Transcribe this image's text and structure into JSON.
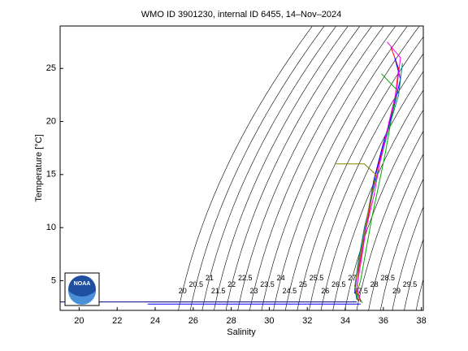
{
  "chart_data": {
    "type": "ts-diagram",
    "title": "WMO ID 3901230, internal ID 6455, 14–Nov–2024",
    "x_label": "Salinity",
    "y_label": "Temperature [°C]",
    "xlim": [
      19,
      38.1
    ],
    "ylim": [
      2.2,
      29
    ],
    "xticks": [
      20,
      22,
      24,
      26,
      28,
      30,
      32,
      34,
      36,
      38
    ],
    "yticks": [
      5,
      10,
      15,
      20,
      25
    ],
    "isopycnal_levels": [
      20,
      20.5,
      21,
      21.5,
      22,
      22.5,
      23,
      23.5,
      24,
      24.5,
      25,
      25.5,
      26,
      26.5,
      27,
      27.5,
      28,
      28.5,
      29,
      29.5,
      30
    ],
    "isopycnal_color": "#000000",
    "logo_text": "NOAA",
    "series": [
      {
        "color": "#ff0000",
        "x": [
          36.4,
          36.8,
          36.6,
          36.2,
          35.6,
          35.3,
          35.0,
          34.7,
          34.6,
          34.8
        ],
        "values": [
          27.0,
          25.0,
          22.0,
          19.0,
          15.0,
          12.0,
          9.0,
          6.0,
          4.0,
          3.0
        ]
      },
      {
        "color": "#0000ff",
        "x": [
          36.6,
          36.9,
          36.5,
          36.0,
          35.5,
          35.2,
          34.9,
          34.6,
          34.5,
          34.7
        ],
        "values": [
          26.0,
          24.0,
          21.0,
          18.0,
          14.5,
          11.5,
          8.5,
          5.5,
          4.0,
          3.0
        ]
      },
      {
        "color": "#00aa00",
        "x": [
          35.9,
          36.7,
          36.4,
          36.1,
          35.7,
          35.4,
          35.1,
          34.8,
          34.6,
          34.9
        ],
        "values": [
          24.5,
          23.0,
          20.0,
          17.0,
          13.5,
          11.0,
          8.0,
          5.0,
          3.8,
          2.9
        ]
      },
      {
        "color": "#008080",
        "x": [
          37.0,
          36.8,
          36.3,
          35.8,
          35.4,
          35.0,
          34.7,
          34.5,
          34.6
        ],
        "values": [
          25.5,
          22.5,
          19.5,
          16.0,
          13.0,
          10.0,
          7.0,
          4.5,
          3.2
        ]
      },
      {
        "color": "#ff00ff",
        "x": [
          36.2,
          36.9,
          36.7,
          36.3,
          35.8,
          35.5,
          35.1,
          34.8,
          34.6,
          34.8
        ],
        "values": [
          27.5,
          26.0,
          23.0,
          20.0,
          16.0,
          13.0,
          10.0,
          6.5,
          4.5,
          3.1
        ]
      },
      {
        "color": "#808000",
        "x": [
          33.5,
          35.0,
          35.6,
          35.3,
          35.0,
          34.7,
          34.5,
          34.7
        ],
        "values": [
          16.0,
          16.0,
          15.0,
          12.5,
          9.5,
          6.5,
          4.5,
          3.0
        ]
      },
      {
        "color": "#000080",
        "x": [
          19.0,
          34.6
        ],
        "values": [
          3.0,
          3.0
        ]
      },
      {
        "color": "#0000ff",
        "x": [
          23.6,
          34.8
        ],
        "values": [
          2.8,
          2.8
        ]
      }
    ]
  }
}
